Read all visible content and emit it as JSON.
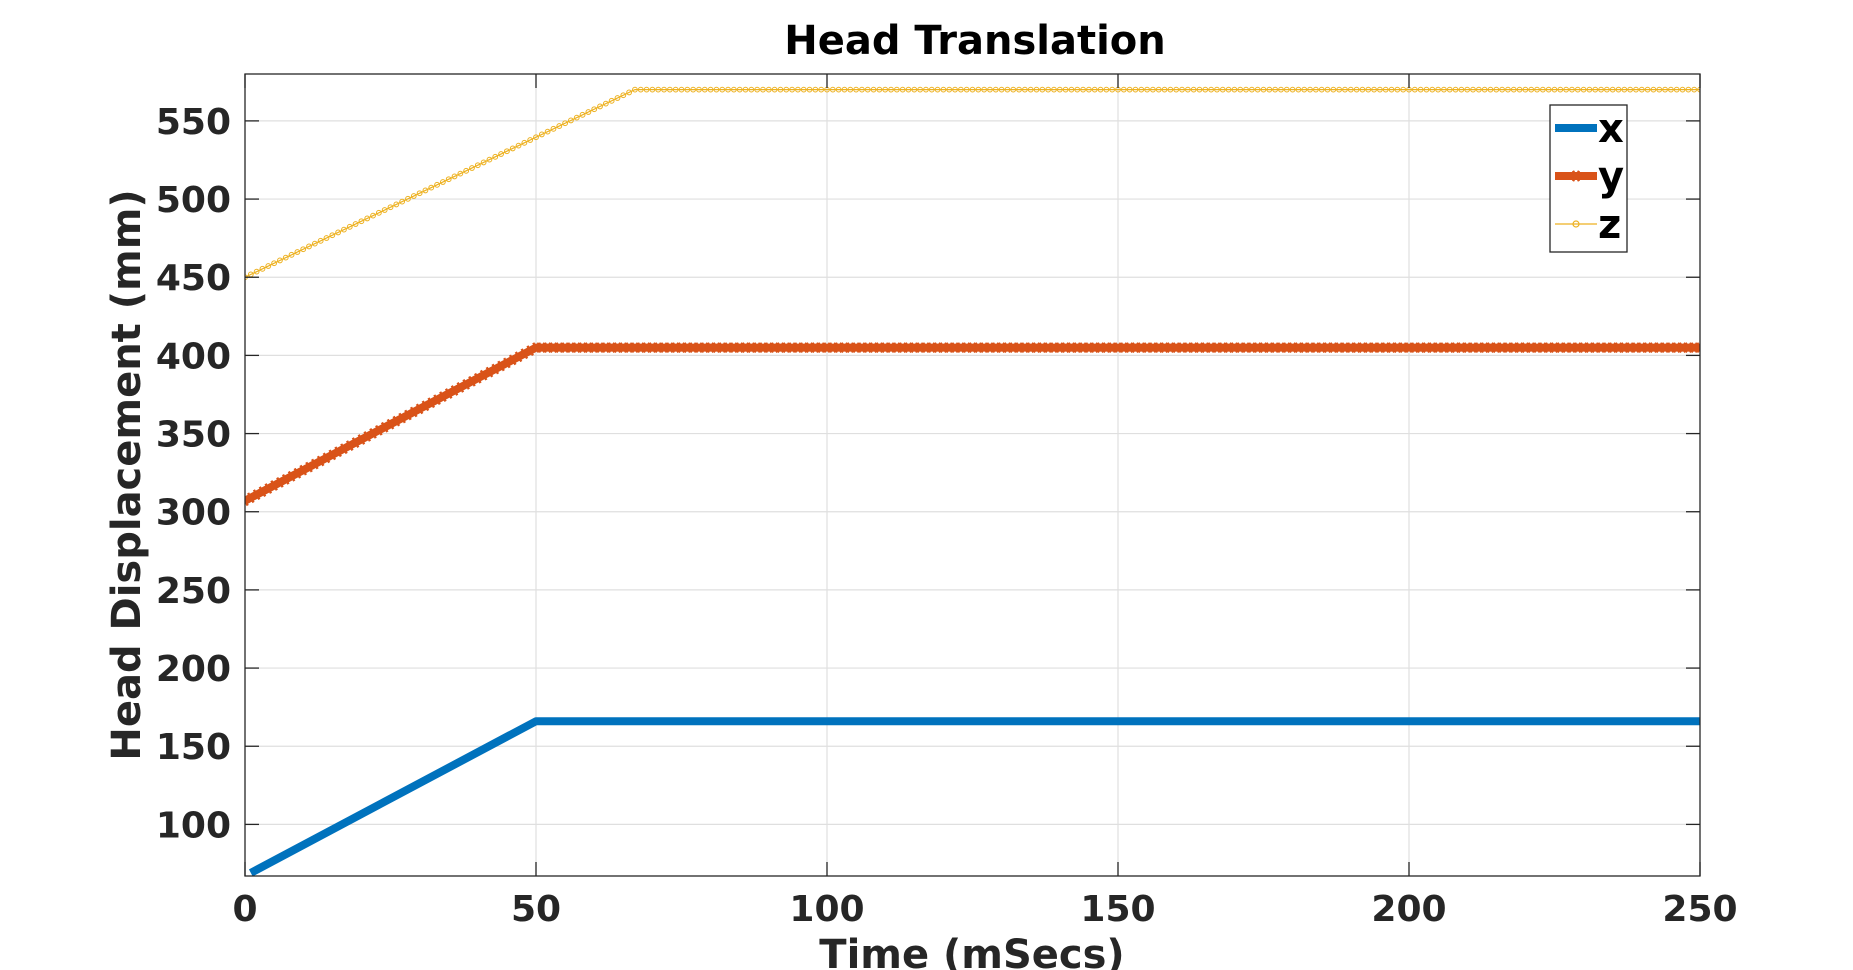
{
  "chart_data": {
    "type": "line",
    "title": "Head Translation",
    "xlabel": "Time (mSecs)",
    "ylabel": "Head Displacement (mm)",
    "xlim": [
      0,
      250
    ],
    "ylim": [
      67,
      580
    ],
    "xticks": [
      0,
      50,
      100,
      150,
      200,
      250
    ],
    "yticks": [
      100,
      150,
      200,
      250,
      300,
      350,
      400,
      450,
      500,
      550
    ],
    "grid": true,
    "legend_position": "top-right",
    "series": [
      {
        "name": "x",
        "color": "#0072BD",
        "marker": "none",
        "points": [
          [
            1,
            69
          ],
          [
            50,
            166
          ],
          [
            250,
            166
          ]
        ]
      },
      {
        "name": "y",
        "color": "#D95319",
        "marker": "star",
        "points": [
          [
            0,
            307
          ],
          [
            50,
            405
          ],
          [
            250,
            405
          ]
        ]
      },
      {
        "name": "z",
        "color": "#EDB120",
        "marker": "circle",
        "points": [
          [
            0,
            450
          ],
          [
            67,
            570
          ],
          [
            250,
            570
          ]
        ]
      }
    ]
  }
}
